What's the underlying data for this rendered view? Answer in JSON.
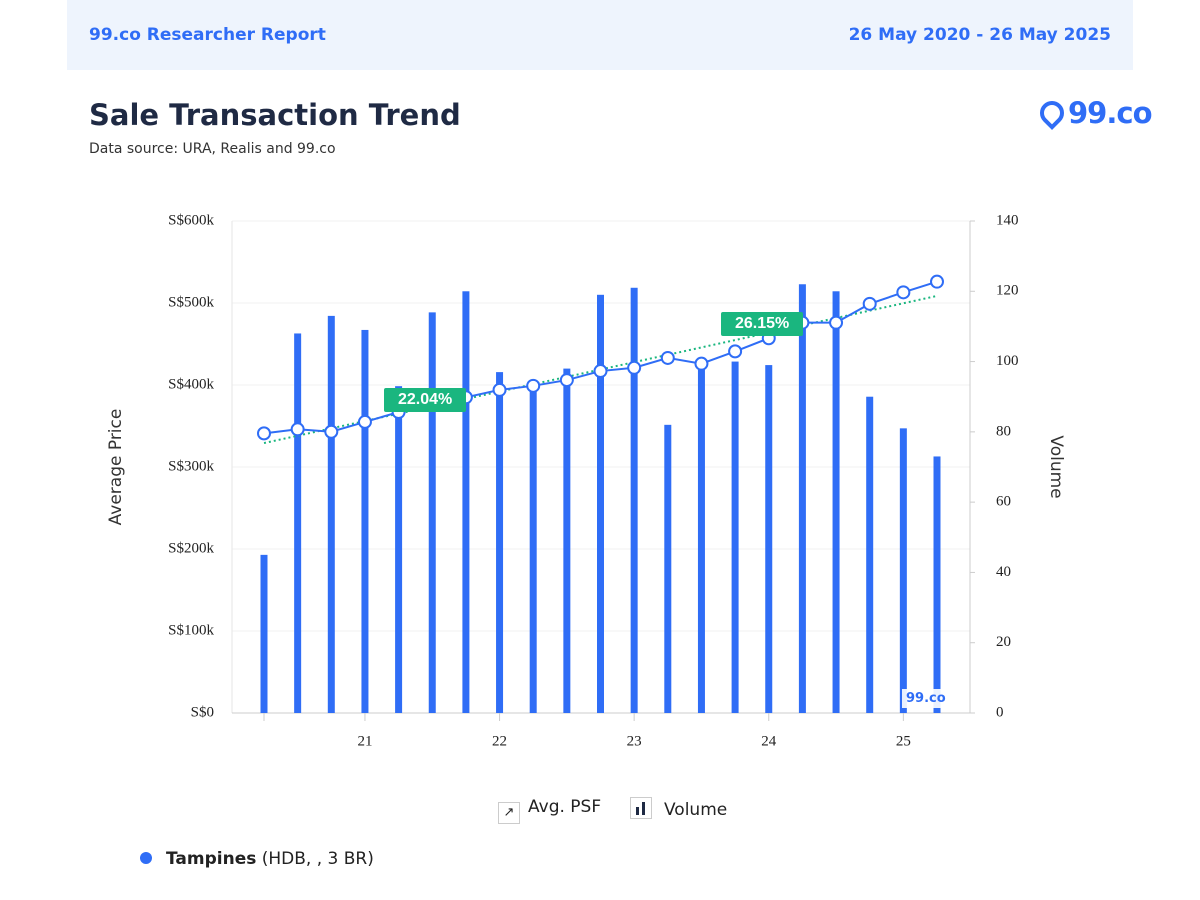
{
  "header": {
    "left": "99.co Researcher Report",
    "right": "26 May 2020 - 26 May 2025"
  },
  "logo": "99.co",
  "watermark": "99.co",
  "footer": {
    "name": "Tampines",
    "detail": "(HDB, , 3 BR)"
  },
  "chart_data": {
    "type": "bar-line",
    "title": "Sale Transaction Trend",
    "subtitle": "Data source: URA, Realis and 99.co",
    "y_label": "Average Price",
    "y2_label": "Volume",
    "categories": [
      "",
      null,
      null,
      "21",
      null,
      null,
      null,
      "22",
      null,
      null,
      null,
      "23",
      null,
      null,
      null,
      "24",
      null,
      null,
      null,
      "25",
      null
    ],
    "series": [
      {
        "name": "Volume",
        "type": "bar",
        "axis": "y2",
        "color": "#2f6df6",
        "values": [
          45,
          108,
          113,
          109,
          93,
          114,
          120,
          97,
          94,
          98,
          119,
          121,
          82,
          99,
          100,
          99,
          122,
          120,
          90,
          81,
          73
        ]
      },
      {
        "name": "Avg. PSF",
        "type": "line",
        "axis": "y",
        "color": "#2f6df6",
        "values": [
          341000,
          346000,
          343000,
          355000,
          367000,
          376000,
          385000,
          394000,
          399000,
          406000,
          417000,
          421000,
          433000,
          426000,
          441000,
          457000,
          476000,
          476000,
          499000,
          513000,
          526000
        ]
      }
    ],
    "annotations": [
      "22.04%",
      "26.15%"
    ],
    "trend_color": "#1ab67f",
    "ylim": [
      0,
      600000
    ],
    "yticks": [
      {
        "value": 0,
        "label": "S$0"
      },
      {
        "value": 100000,
        "label": "S$100k"
      },
      {
        "value": 200000,
        "label": "S$200k"
      },
      {
        "value": 300000,
        "label": "S$300k"
      },
      {
        "value": 400000,
        "label": "S$400k"
      },
      {
        "value": 500000,
        "label": "S$500k"
      },
      {
        "value": 600000,
        "label": "S$600k"
      }
    ],
    "y2lim": [
      0,
      140
    ],
    "y2ticks": [
      0,
      20,
      40,
      60,
      80,
      100,
      120,
      140
    ]
  }
}
